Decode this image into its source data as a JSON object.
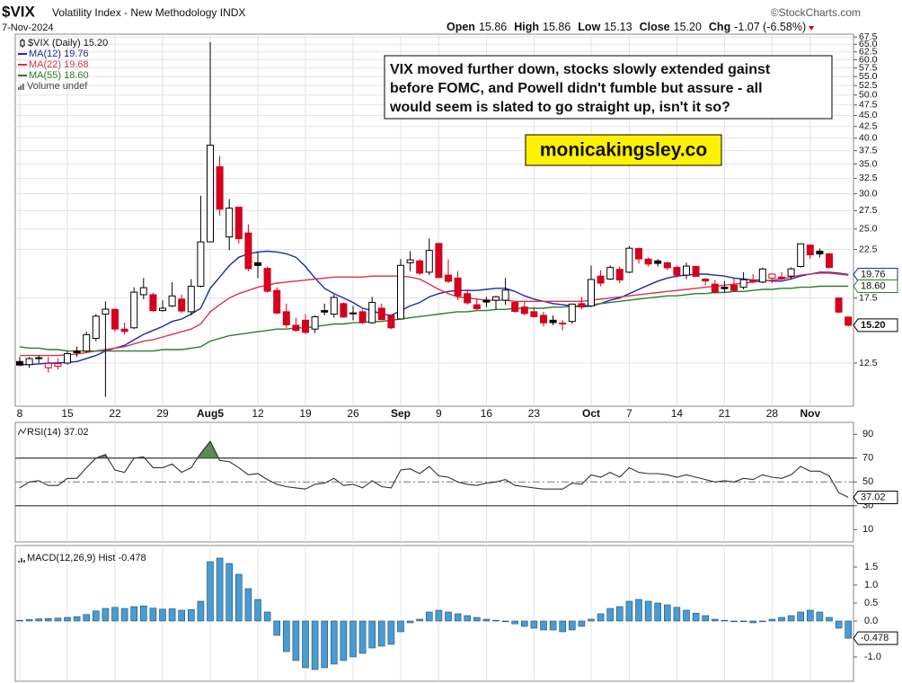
{
  "chart_data": [
    {
      "type": "candlestick",
      "title": "$VIX",
      "subtitle": "Volatility Index - New Methodology INDX",
      "date": "7-Nov-2024",
      "source": "©StockCharts.com",
      "quote": [
        {
          "label": "Open",
          "value": "15.86"
        },
        {
          "label": "High",
          "value": "15.86"
        },
        {
          "label": "Low",
          "value": "15.13"
        },
        {
          "label": "Close",
          "value": "15.20"
        },
        {
          "label": "Chg",
          "value": "-1.07 (-6.58%)"
        }
      ],
      "legend_label": "$VIX (Daily) 15.20",
      "volume_label": "Volume undef",
      "close_label": "15.20",
      "annotation": [
        "VIX moved further down, stocks slowly extended gainst",
        "before FOMC, and Powell didn't fumble but assure - all",
        "would seem is slated to go straight up, isn't it so?"
      ],
      "watermark": "monicakingsley.co",
      "categories": [
        "8",
        null,
        null,
        null,
        null,
        "15",
        null,
        null,
        null,
        null,
        "22",
        null,
        null,
        null,
        null,
        "29",
        null,
        null,
        null,
        null,
        "Aug5",
        null,
        null,
        null,
        null,
        "12",
        null,
        null,
        null,
        null,
        "19",
        null,
        null,
        null,
        null,
        "26",
        null,
        null,
        null,
        null,
        "Sep",
        null,
        null,
        null,
        "9",
        null,
        null,
        null,
        null,
        "16",
        null,
        null,
        null,
        null,
        "23",
        null,
        null,
        null,
        null,
        null,
        "Oct",
        null,
        null,
        null,
        "7",
        null,
        null,
        null,
        null,
        "14",
        null,
        null,
        null,
        null,
        "21",
        null,
        null,
        null,
        null,
        "28",
        null,
        null,
        null,
        "Nov",
        null,
        null,
        null,
        null
      ],
      "open": [
        12.6,
        12.4,
        12.8,
        12.2,
        12.3,
        12.5,
        13.3,
        13.3,
        14.2,
        16.1,
        16.5,
        14.9,
        15.0,
        17.8,
        17.8,
        16.4,
        16.8,
        17.4,
        16.3,
        18.6,
        23.4,
        34.5,
        24.0,
        28.0,
        24.5,
        21.0,
        20.4,
        18.2,
        16.3,
        15.2,
        15.6,
        14.9,
        16.4,
        16.1,
        17.0,
        16.2,
        16.3,
        15.4,
        16.6,
        16.0,
        15.7,
        21.0,
        21.2,
        20.0,
        23.2,
        19.7,
        19.4,
        17.9,
        16.9,
        17.3,
        17.3,
        17.3,
        17.1,
        16.7,
        16.3,
        16.0,
        15.6,
        15.3,
        15.5,
        17.0,
        16.8,
        19.6,
        19.3,
        20.3,
        20.0,
        22.6,
        21.4,
        21.2,
        21.0,
        20.5,
        19.7,
        20.6,
        19.3,
        18.8,
        18.5,
        18.7,
        18.5,
        19.2,
        19.0,
        19.4,
        19.5,
        19.6,
        20.6,
        23.0,
        22.3,
        22.0,
        17.5,
        15.86
      ],
      "high": [
        12.9,
        12.9,
        13.0,
        12.9,
        12.8,
        13.3,
        13.6,
        14.7,
        16.1,
        17.2,
        16.6,
        15.4,
        18.5,
        19.4,
        18.0,
        17.3,
        19.0,
        17.8,
        19.3,
        29.7,
        65.7,
        36.5,
        29.2,
        28.0,
        25.6,
        22.2,
        20.6,
        18.5,
        17.0,
        15.8,
        16.1,
        16.0,
        17.0,
        17.8,
        17.1,
        16.8,
        16.5,
        17.6,
        17.0,
        16.0,
        21.4,
        22.3,
        21.4,
        23.8,
        23.3,
        21.4,
        20.1,
        18.3,
        17.4,
        17.6,
        17.7,
        19.4,
        17.2,
        17.2,
        16.7,
        16.3,
        16.0,
        15.6,
        17.0,
        17.6,
        20.7,
        20.2,
        20.7,
        20.6,
        22.9,
        22.7,
        21.6,
        21.4,
        21.1,
        20.7,
        21.0,
        20.7,
        19.4,
        19.2,
        19.1,
        19.4,
        20.0,
        19.8,
        20.5,
        19.9,
        20.0,
        20.5,
        23.2,
        23.1,
        22.6,
        22.0,
        17.5,
        15.86
      ],
      "low": [
        12.3,
        12.2,
        12.5,
        11.9,
        12.1,
        12.4,
        12.9,
        13.2,
        14.0,
        10.5,
        14.7,
        14.5,
        14.9,
        17.4,
        16.3,
        16.3,
        16.7,
        16.2,
        16.0,
        18.5,
        23.4,
        26.8,
        22.4,
        23.2,
        20.1,
        19.4,
        18.0,
        16.1,
        15.0,
        14.7,
        14.5,
        14.6,
        16.0,
        15.8,
        15.8,
        15.6,
        15.3,
        15.3,
        15.6,
        14.9,
        15.7,
        20.1,
        19.7,
        19.7,
        19.4,
        18.9,
        17.3,
        16.9,
        16.4,
        16.7,
        16.5,
        16.9,
        16.2,
        16.0,
        15.8,
        15.1,
        15.2,
        14.8,
        15.3,
        16.5,
        16.7,
        18.6,
        19.2,
        18.9,
        19.9,
        20.9,
        20.6,
        20.6,
        20.2,
        19.4,
        19.3,
        19.5,
        18.7,
        17.9,
        18.0,
        18.1,
        18.3,
        18.9,
        18.9,
        18.9,
        19.2,
        19.3,
        20.5,
        21.4,
        21.6,
        20.4,
        16.2,
        15.13
      ],
      "close": [
        12.37,
        12.79,
        12.85,
        12.48,
        12.46,
        13.12,
        13.19,
        14.48,
        15.93,
        16.52,
        14.91,
        14.72,
        18.04,
        18.46,
        16.39,
        16.6,
        17.69,
        16.36,
        18.59,
        23.39,
        38.57,
        27.71,
        27.85,
        23.79,
        20.37,
        20.71,
        18.12,
        16.19,
        15.23,
        14.8,
        14.65,
        15.88,
        16.27,
        17.55,
        15.86,
        16.15,
        15.43,
        17.11,
        15.65,
        15.0,
        20.72,
        21.32,
        19.9,
        22.38,
        19.45,
        19.08,
        17.69,
        17.07,
        16.56,
        17.14,
        17.61,
        18.23,
        16.33,
        16.15,
        15.89,
        15.39,
        15.41,
        15.37,
        16.96,
        16.73,
        19.26,
        18.9,
        20.49,
        19.21,
        22.64,
        21.42,
        20.86,
        20.93,
        20.46,
        19.7,
        20.64,
        19.58,
        19.11,
        18.03,
        18.37,
        18.2,
        19.24,
        19.08,
        20.33,
        19.8,
        19.34,
        20.35,
        23.16,
        21.88,
        21.98,
        20.49,
        16.27,
        15.2
      ],
      "up_color": "#000000",
      "down_color": "#d4001e",
      "series": [
        {
          "name": "MA(12) 19.76",
          "color": "#1c2aa8",
          "end_label": "19.76",
          "values": [
            12.4,
            12.4,
            12.45,
            12.5,
            12.5,
            12.55,
            12.6,
            12.8,
            13.0,
            13.3,
            13.5,
            13.7,
            14.1,
            14.5,
            14.8,
            15.1,
            15.5,
            15.7,
            16.1,
            16.6,
            18.4,
            19.5,
            20.7,
            21.6,
            22.0,
            22.2,
            22.3,
            22.2,
            22.0,
            21.6,
            20.6,
            19.4,
            18.4,
            17.9,
            17.5,
            17.1,
            16.6,
            16.4,
            16.1,
            16.0,
            16.4,
            16.8,
            17.1,
            17.6,
            17.9,
            18.1,
            18.2,
            18.2,
            18.2,
            18.3,
            18.4,
            18.4,
            18.1,
            17.7,
            17.4,
            17.2,
            17.0,
            16.9,
            16.8,
            16.7,
            16.8,
            17.0,
            17.3,
            17.5,
            17.9,
            18.3,
            18.7,
            19.1,
            19.4,
            19.6,
            19.7,
            19.8,
            19.8,
            19.7,
            19.6,
            19.4,
            19.3,
            19.2,
            19.2,
            19.1,
            19.1,
            19.3,
            19.6,
            19.8,
            20.0,
            20.0,
            19.9,
            19.76
          ]
        },
        {
          "name": "MA(22) 19.68",
          "color": "#d8344e",
          "values": [
            13.0,
            13.0,
            13.0,
            13.0,
            13.0,
            13.05,
            13.1,
            13.2,
            13.3,
            13.4,
            13.5,
            13.6,
            13.8,
            14.0,
            14.1,
            14.3,
            14.5,
            14.7,
            14.9,
            15.3,
            16.3,
            16.9,
            17.5,
            17.9,
            18.2,
            18.5,
            18.7,
            18.9,
            19.0,
            19.1,
            19.2,
            19.3,
            19.4,
            19.5,
            19.5,
            19.5,
            19.5,
            19.6,
            19.6,
            19.6,
            19.6,
            19.5,
            19.3,
            18.8,
            18.3,
            17.9,
            17.6,
            17.5,
            17.4,
            17.3,
            17.3,
            17.3,
            17.2,
            17.2,
            17.2,
            17.2,
            17.2,
            17.2,
            17.2,
            17.2,
            17.3,
            17.4,
            17.5,
            17.6,
            17.7,
            17.8,
            17.9,
            18.0,
            18.1,
            18.2,
            18.3,
            18.4,
            18.5,
            18.6,
            18.7,
            18.8,
            18.9,
            19.0,
            19.1,
            19.2,
            19.3,
            19.5,
            19.7,
            19.8,
            19.9,
            19.9,
            19.8,
            19.68
          ]
        },
        {
          "name": "MA(55) 18.60",
          "color": "#2e7d2e",
          "end_label": "18.60",
          "values": [
            13.6,
            13.5,
            13.5,
            13.4,
            13.4,
            13.3,
            13.3,
            13.3,
            13.3,
            13.3,
            13.3,
            13.3,
            13.3,
            13.3,
            13.3,
            13.4,
            13.4,
            13.4,
            13.5,
            13.6,
            14.0,
            14.2,
            14.4,
            14.5,
            14.6,
            14.7,
            14.8,
            14.9,
            14.9,
            15.0,
            15.0,
            15.1,
            15.2,
            15.3,
            15.3,
            15.4,
            15.4,
            15.5,
            15.5,
            15.6,
            15.7,
            15.8,
            15.9,
            16.0,
            16.1,
            16.2,
            16.3,
            16.3,
            16.4,
            16.4,
            16.5,
            16.5,
            16.6,
            16.6,
            16.6,
            16.6,
            16.7,
            16.7,
            16.8,
            16.8,
            16.9,
            17.0,
            17.1,
            17.2,
            17.3,
            17.4,
            17.5,
            17.6,
            17.7,
            17.7,
            17.8,
            17.9,
            17.9,
            18.0,
            18.0,
            18.1,
            18.1,
            18.2,
            18.3,
            18.3,
            18.4,
            18.4,
            18.5,
            18.5,
            18.6,
            18.6,
            18.6,
            18.6
          ]
        }
      ],
      "log_scale": true,
      "grid": true,
      "ylim": [
        10,
        68.5
      ],
      "yticks": [
        12.5,
        17.5,
        22.5,
        {
          "value": 25,
          "label": "25.0"
        },
        27.5,
        {
          "value": 30,
          "label": "30.0"
        },
        32.5,
        {
          "value": 35,
          "label": "35.0"
        },
        37.5,
        {
          "value": 40,
          "label": "40.0"
        },
        42.5,
        {
          "value": 45,
          "label": "45.0"
        },
        47.5,
        {
          "value": 50,
          "label": "50.0"
        },
        52.5,
        {
          "value": 55,
          "label": "55.0"
        },
        57.5,
        {
          "value": 60,
          "label": "60.0"
        },
        62.5,
        {
          "value": 65,
          "label": "65.0"
        },
        67.5
      ]
    },
    {
      "type": "line",
      "name": "RSI(14) 37.02",
      "color": "#333333",
      "fill_color": "#5b8a55",
      "end_label": "37.02",
      "values": [
        45,
        50,
        51,
        47,
        47,
        53,
        53,
        62,
        70,
        73,
        60,
        58,
        70,
        71,
        62,
        62,
        65,
        58,
        62,
        74,
        84,
        68,
        67,
        62,
        56,
        57,
        52,
        48,
        46,
        45,
        44,
        48,
        49,
        53,
        47,
        48,
        45,
        51,
        46,
        45,
        60,
        61,
        57,
        63,
        55,
        54,
        50,
        48,
        47,
        49,
        50,
        52,
        47,
        46,
        45,
        44,
        44,
        44,
        49,
        48,
        56,
        54,
        58,
        54,
        62,
        58,
        57,
        57,
        56,
        54,
        56,
        54,
        52,
        50,
        51,
        50,
        53,
        52,
        56,
        54,
        53,
        56,
        63,
        59,
        59,
        55,
        41,
        37.02
      ],
      "bands": [
        30,
        70
      ],
      "midline": 50,
      "ylim": [
        0,
        100
      ],
      "yticks": [
        10,
        30,
        50,
        70,
        90
      ]
    },
    {
      "type": "bar",
      "name": "MACD(12,26,9) Hist -0.478",
      "color": "#4a9bd3",
      "end_label": "-0.478",
      "values": [
        0.02,
        0.04,
        0.06,
        0.07,
        0.08,
        0.1,
        0.12,
        0.18,
        0.28,
        0.35,
        0.38,
        0.35,
        0.4,
        0.42,
        0.36,
        0.33,
        0.34,
        0.3,
        0.32,
        0.55,
        1.65,
        1.75,
        1.6,
        1.3,
        0.9,
        0.6,
        0.25,
        -0.4,
        -0.85,
        -1.1,
        -1.3,
        -1.35,
        -1.3,
        -1.2,
        -1.1,
        -1.0,
        -0.9,
        -0.75,
        -0.7,
        -0.65,
        -0.3,
        -0.05,
        0.05,
        0.25,
        0.3,
        0.25,
        0.2,
        0.15,
        0.1,
        0.05,
        0.02,
        0.0,
        -0.08,
        -0.15,
        -0.2,
        -0.25,
        -0.25,
        -0.3,
        -0.25,
        -0.15,
        0.05,
        0.2,
        0.35,
        0.4,
        0.55,
        0.6,
        0.55,
        0.5,
        0.45,
        0.38,
        0.3,
        0.22,
        0.15,
        0.05,
        0.02,
        0.0,
        -0.02,
        -0.05,
        0.0,
        0.05,
        0.1,
        0.15,
        0.25,
        0.3,
        0.25,
        0.1,
        -0.2,
        -0.478
      ],
      "ylim": [
        -1.6,
        2.0
      ],
      "yticks": [
        1.5,
        {
          "value": 1,
          "label": "1.0"
        },
        0.5,
        {
          "value": 0,
          "label": "0.0"
        },
        {
          "value": -1,
          "label": "-1.0"
        }
      ]
    }
  ]
}
